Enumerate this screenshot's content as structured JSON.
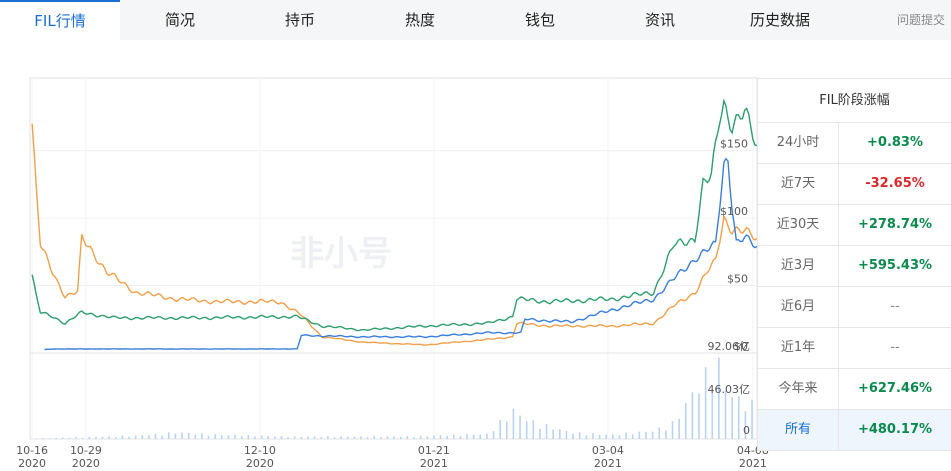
{
  "tabs": [
    "FIL行情",
    "简况",
    "持币",
    "热度",
    "钱包",
    "资讯",
    "历史数据"
  ],
  "feedback": "问题提交",
  "watermark": "非小号",
  "side": {
    "title": "FIL阶段涨幅",
    "rows": [
      {
        "k": "24小时",
        "v": "+0.83%",
        "tone": "up"
      },
      {
        "k": "近7天",
        "v": "-32.65%",
        "tone": "down"
      },
      {
        "k": "近30天",
        "v": "+278.74%",
        "tone": "up"
      },
      {
        "k": "近3月",
        "v": "+595.43%",
        "tone": "up"
      },
      {
        "k": "近6月",
        "v": "--",
        "tone": "flat"
      },
      {
        "k": "近1年",
        "v": "--",
        "tone": "flat"
      },
      {
        "k": "今年来",
        "v": "+627.46%",
        "tone": "up"
      },
      {
        "k": "所有",
        "v": "+480.17%",
        "tone": "up",
        "selected": true
      }
    ]
  },
  "colors": {
    "green": "#2e9e6e",
    "blue": "#3a7fdc",
    "orange": "#f0a04b",
    "volume": "#b9d3f3",
    "active": "#1a6fd0"
  },
  "chart_data": {
    "type": "line",
    "price_ylim": [
      0,
      180
    ],
    "price_ticks": [
      "$150",
      "$100",
      "$50",
      "$0"
    ],
    "price_tick_values": [
      150,
      100,
      50,
      0
    ],
    "volume_ticks": [
      "92.06亿",
      "46.03亿",
      "0"
    ],
    "volume_tick_values": [
      92.06,
      46.03,
      0
    ],
    "x_ticks": [
      {
        "date": "10-16",
        "year": "2020",
        "t": 0
      },
      {
        "date": "10-29",
        "year": "2020",
        "t": 13
      },
      {
        "date": "12-10",
        "year": "2020",
        "t": 55
      },
      {
        "date": "01-21",
        "year": "2021",
        "t": 97
      },
      {
        "date": "03-04",
        "year": "2021",
        "t": 139
      },
      {
        "date": "04-08",
        "year": "2021",
        "t": 174
      }
    ],
    "x_range": [
      -0.5,
      175
    ],
    "series_blue": [
      [
        3,
        2.5
      ],
      [
        5,
        3
      ],
      [
        10,
        3
      ],
      [
        20,
        3
      ],
      [
        40,
        3
      ],
      [
        64,
        3
      ],
      [
        65,
        13
      ],
      [
        80,
        12
      ],
      [
        95,
        12
      ],
      [
        110,
        15
      ],
      [
        118,
        15
      ],
      [
        119,
        25
      ],
      [
        130,
        23
      ],
      [
        140,
        32
      ],
      [
        150,
        40
      ],
      [
        155,
        55
      ],
      [
        160,
        70
      ],
      [
        165,
        80
      ],
      [
        167,
        140
      ],
      [
        168,
        145
      ],
      [
        169,
        110
      ],
      [
        170,
        82
      ],
      [
        172,
        85
      ],
      [
        175,
        78
      ]
    ],
    "series_green": [
      [
        0,
        58
      ],
      [
        1,
        42
      ],
      [
        2,
        30
      ],
      [
        5,
        27
      ],
      [
        8,
        22
      ],
      [
        12,
        30
      ],
      [
        20,
        26
      ],
      [
        40,
        26
      ],
      [
        64,
        27
      ],
      [
        70,
        20
      ],
      [
        80,
        17
      ],
      [
        95,
        20
      ],
      [
        110,
        22
      ],
      [
        116,
        27
      ],
      [
        117,
        40
      ],
      [
        125,
        38
      ],
      [
        140,
        40
      ],
      [
        150,
        45
      ],
      [
        155,
        80
      ],
      [
        160,
        85
      ],
      [
        162,
        125
      ],
      [
        164,
        130
      ],
      [
        166,
        175
      ],
      [
        167,
        185
      ],
      [
        169,
        170
      ],
      [
        172,
        178
      ],
      [
        175,
        152
      ]
    ],
    "series_orange": [
      [
        0,
        170
      ],
      [
        1,
        120
      ],
      [
        2,
        80
      ],
      [
        5,
        60
      ],
      [
        8,
        42
      ],
      [
        11,
        45
      ],
      [
        12,
        85
      ],
      [
        14,
        78
      ],
      [
        18,
        60
      ],
      [
        25,
        45
      ],
      [
        35,
        40
      ],
      [
        45,
        38
      ],
      [
        55,
        38
      ],
      [
        60,
        38
      ],
      [
        65,
        28
      ],
      [
        70,
        12
      ],
      [
        80,
        8
      ],
      [
        95,
        6
      ],
      [
        110,
        10
      ],
      [
        116,
        12
      ],
      [
        117,
        22
      ],
      [
        125,
        20
      ],
      [
        140,
        20
      ],
      [
        150,
        22
      ],
      [
        155,
        35
      ],
      [
        160,
        45
      ],
      [
        163,
        60
      ],
      [
        165,
        68
      ],
      [
        167,
        100
      ],
      [
        169,
        92
      ],
      [
        172,
        90
      ],
      [
        175,
        84
      ]
    ],
    "volume": [
      [
        1,
        1
      ],
      [
        5,
        1.3
      ],
      [
        12,
        2
      ],
      [
        25,
        4
      ],
      [
        35,
        8
      ],
      [
        45,
        5
      ],
      [
        55,
        4
      ],
      [
        64,
        3
      ],
      [
        75,
        3
      ],
      [
        90,
        3
      ],
      [
        110,
        6
      ],
      [
        116,
        35
      ],
      [
        120,
        22
      ],
      [
        125,
        15
      ],
      [
        130,
        8
      ],
      [
        140,
        5
      ],
      [
        150,
        10
      ],
      [
        155,
        20
      ],
      [
        160,
        60
      ],
      [
        163,
        80
      ],
      [
        166,
        90
      ],
      [
        168,
        55
      ],
      [
        172,
        45
      ],
      [
        175,
        40
      ]
    ]
  }
}
